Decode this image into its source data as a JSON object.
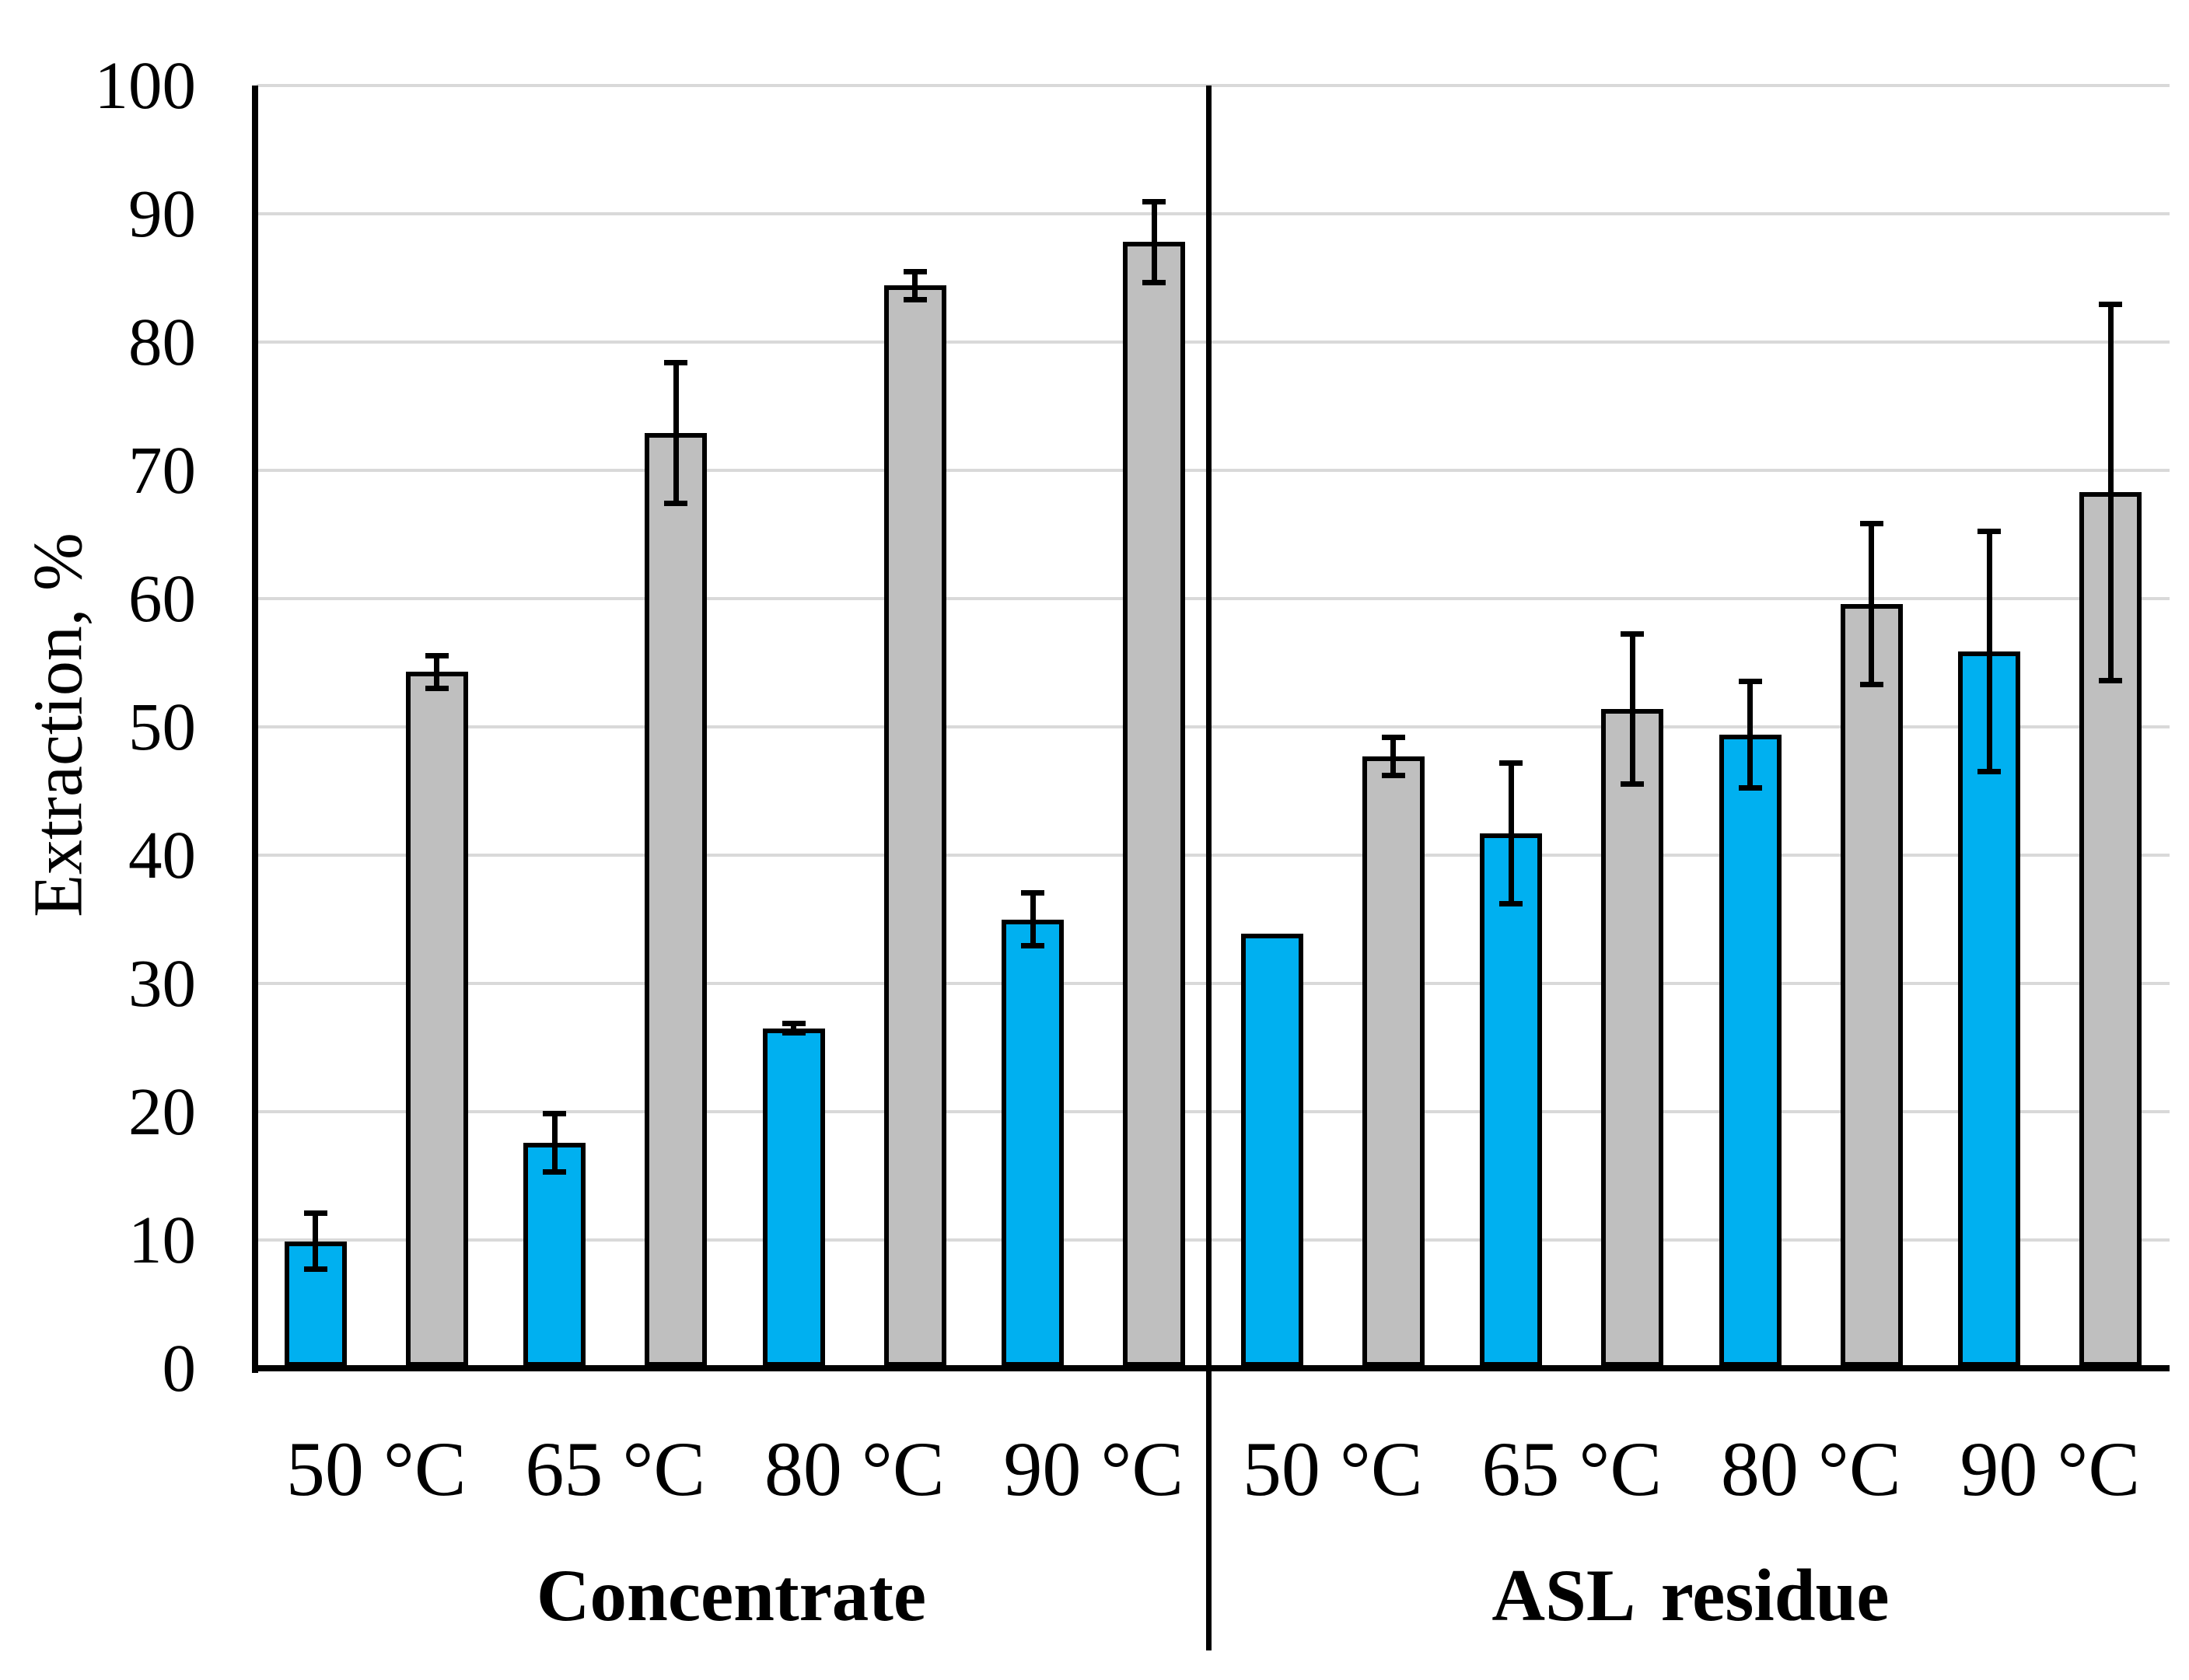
{
  "chart_data": {
    "type": "bar",
    "title": "",
    "xlabel": "",
    "ylabel": "Extraction, %",
    "ylim": [
      0,
      100
    ],
    "yticks": [
      0,
      10,
      20,
      30,
      40,
      50,
      60,
      70,
      80,
      90,
      100
    ],
    "grid": "horizontal",
    "gridline_color": "#d9d9d9",
    "legend_position": "none",
    "error_bars": true,
    "bar_border_color": "#000000",
    "groups": [
      {
        "label": "Concentrate",
        "categories": [
          "50 °C",
          "65 °C",
          "80 °C",
          "90 °C"
        ],
        "series": [
          {
            "name": "blue-series",
            "color": "#00b0f0",
            "values": [
              9.9,
              17.6,
              26.5,
              35.0
            ],
            "errors": [
              2.2,
              2.3,
              0.4,
              2.1
            ]
          },
          {
            "name": "gray-series",
            "color": "#bfbfbf",
            "values": [
              54.3,
              72.9,
              84.4,
              87.8
            ],
            "errors": [
              1.3,
              5.5,
              1.1,
              3.2
            ]
          }
        ]
      },
      {
        "label": "ASL residue",
        "categories": [
          "50 °C",
          "65 °C",
          "80 °C",
          "90 °C"
        ],
        "series": [
          {
            "name": "blue-series",
            "color": "#00b0f0",
            "values": [
              33.9,
              41.7,
              49.4,
              55.9
            ],
            "errors": [
              null,
              5.5,
              4.2,
              9.4
            ]
          },
          {
            "name": "gray-series",
            "color": "#bfbfbf",
            "values": [
              47.7,
              51.4,
              59.6,
              68.3
            ],
            "errors": [
              1.5,
              5.9,
              6.3,
              14.7
            ]
          }
        ]
      }
    ]
  }
}
